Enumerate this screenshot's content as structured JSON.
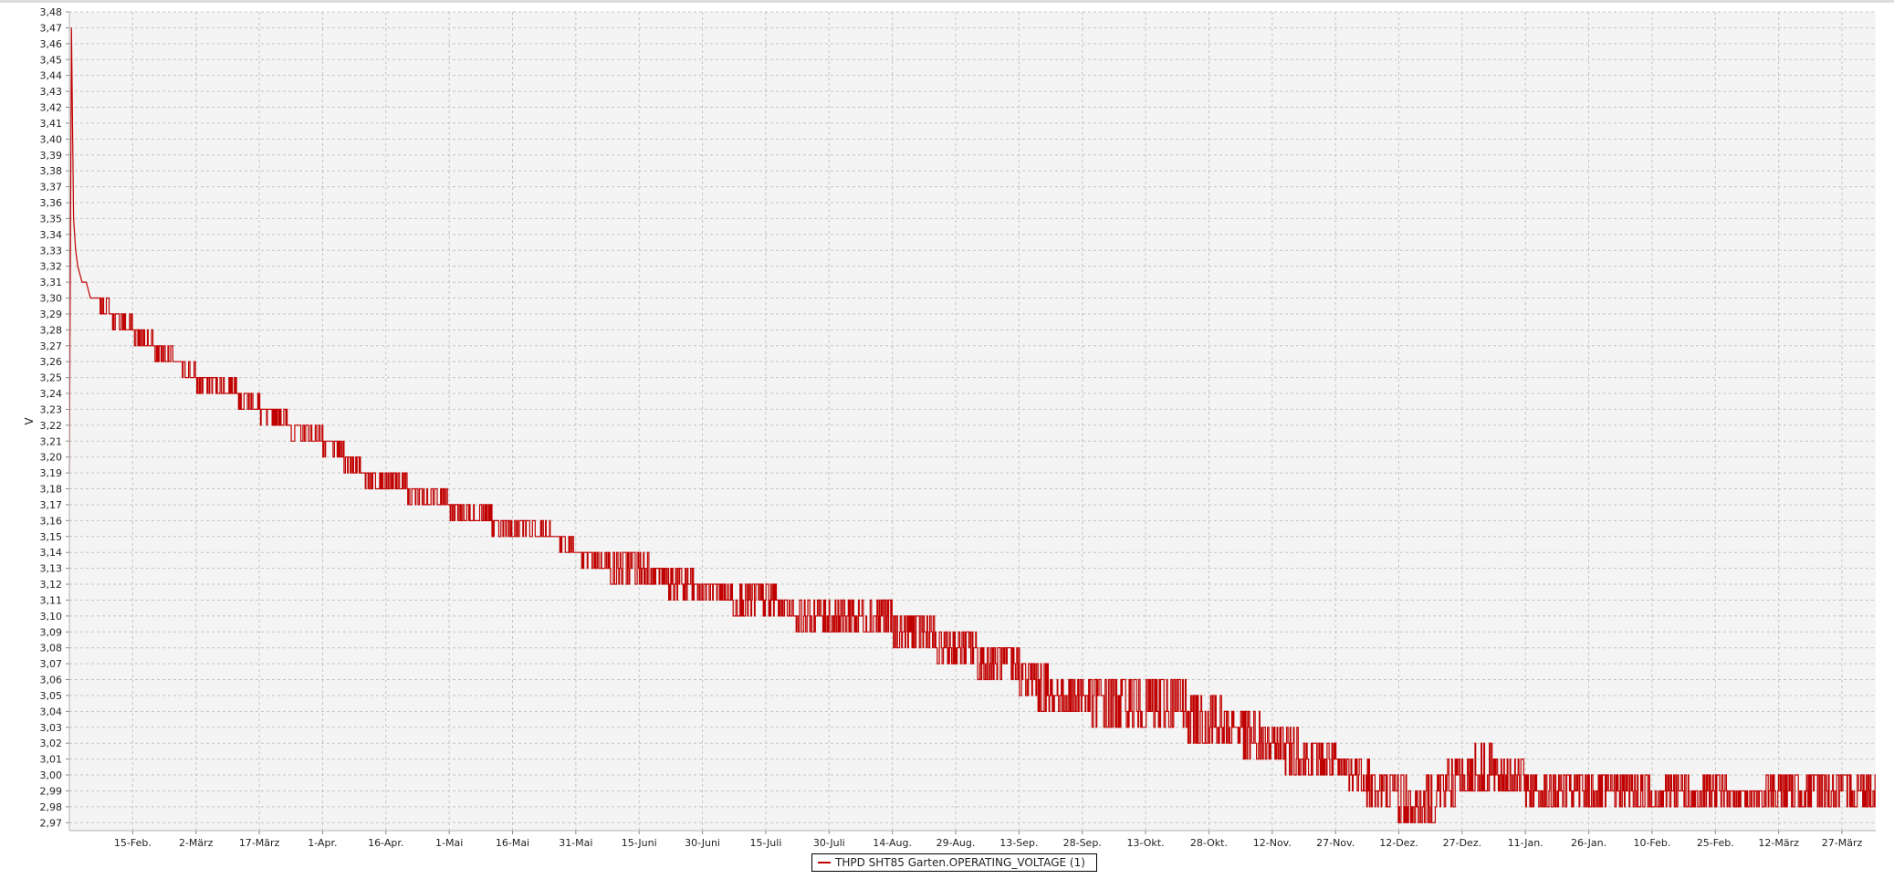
{
  "chart_data": {
    "type": "line",
    "title": "",
    "xlabel": "",
    "ylabel": "V",
    "ylim": [
      2.965,
      3.48
    ],
    "grid": true,
    "legend_position": "bottom-center",
    "y_ticks": [
      "3,48",
      "3,47",
      "3,46",
      "3,45",
      "3,44",
      "3,43",
      "3,42",
      "3,41",
      "3,40",
      "3,39",
      "3,38",
      "3,37",
      "3,36",
      "3,35",
      "3,34",
      "3,33",
      "3,32",
      "3,31",
      "3,30",
      "3,29",
      "3,28",
      "3,27",
      "3,26",
      "3,25",
      "3,24",
      "3,23",
      "3,22",
      "3,21",
      "3,20",
      "3,19",
      "3,18",
      "3,17",
      "3,16",
      "3,15",
      "3,14",
      "3,13",
      "3,12",
      "3,11",
      "3,10",
      "3,09",
      "3,08",
      "3,07",
      "3,06",
      "3,05",
      "3,04",
      "3,03",
      "3,02",
      "3,01",
      "3,00",
      "2,99",
      "2,98",
      "2,97"
    ],
    "x_ticks": [
      "15-Feb.",
      "2-März",
      "17-März",
      "1-Apr.",
      "16-Apr.",
      "1-Mai",
      "16-Mai",
      "31-Mai",
      "15-Juni",
      "30-Juni",
      "15-Juli",
      "30-Juli",
      "14-Aug.",
      "29-Aug.",
      "13-Sep.",
      "28-Sep.",
      "13-Okt.",
      "28-Okt.",
      "12-Nov.",
      "27-Nov.",
      "12-Dez.",
      "27-Dez.",
      "11-Jan.",
      "26-Jan.",
      "10-Feb.",
      "25-Feb.",
      "12-März",
      "27-März"
    ],
    "x_tick_days": [
      15,
      30,
      45,
      60,
      75,
      90,
      105,
      120,
      135,
      150,
      165,
      180,
      195,
      210,
      225,
      240,
      255,
      270,
      285,
      300,
      315,
      330,
      345,
      360,
      375,
      390,
      405,
      420
    ],
    "x_range_days": [
      0,
      428
    ],
    "series": [
      {
        "name": "THPD SHT85 Garten.OPERATING_VOLTAGE (1)",
        "color": "#c00000",
        "x": [
          0,
          0.5,
          1,
          1.5,
          2,
          3,
          4,
          5,
          6,
          8,
          10,
          15,
          20,
          25,
          30,
          35,
          40,
          45,
          50,
          55,
          60,
          65,
          70,
          75,
          80,
          85,
          90,
          95,
          100,
          105,
          110,
          115,
          120,
          125,
          130,
          135,
          140,
          145,
          150,
          155,
          160,
          165,
          170,
          175,
          180,
          185,
          190,
          195,
          200,
          205,
          210,
          215,
          220,
          225,
          230,
          235,
          240,
          245,
          250,
          255,
          260,
          265,
          270,
          275,
          280,
          285,
          290,
          295,
          300,
          305,
          310,
          315,
          320,
          325,
          330,
          335,
          340,
          345,
          350,
          355,
          360,
          365,
          370,
          375,
          380,
          385,
          390,
          395,
          400,
          405,
          410,
          415,
          420,
          425,
          428
        ],
        "y": [
          3.19,
          3.47,
          3.35,
          3.33,
          3.32,
          3.31,
          3.31,
          3.3,
          3.3,
          3.29,
          3.29,
          3.28,
          3.27,
          3.26,
          3.25,
          3.245,
          3.24,
          3.23,
          3.225,
          3.215,
          3.21,
          3.2,
          3.19,
          3.185,
          3.18,
          3.175,
          3.17,
          3.165,
          3.16,
          3.155,
          3.155,
          3.15,
          3.14,
          3.135,
          3.13,
          3.13,
          3.125,
          3.12,
          3.115,
          3.115,
          3.11,
          3.11,
          3.105,
          3.1,
          3.1,
          3.1,
          3.095,
          3.095,
          3.09,
          3.085,
          3.08,
          3.075,
          3.07,
          3.065,
          3.055,
          3.05,
          3.05,
          3.045,
          3.045,
          3.04,
          3.04,
          3.04,
          3.035,
          3.03,
          3.025,
          3.02,
          3.015,
          3.01,
          3.005,
          3.0,
          2.99,
          2.985,
          2.98,
          2.99,
          3.0,
          3.005,
          3.0,
          2.995,
          2.99,
          2.985,
          2.99,
          2.99,
          2.99,
          2.99,
          2.99,
          2.985,
          2.99,
          2.985,
          2.985,
          2.99,
          2.99,
          2.99,
          2.99,
          2.99,
          2.99
        ],
        "amp": [
          0,
          0,
          0,
          0,
          0,
          0,
          0,
          0,
          0,
          0.005,
          0.005,
          0.005,
          0.005,
          0.005,
          0.005,
          0.005,
          0.005,
          0.005,
          0.005,
          0.005,
          0.005,
          0.005,
          0.005,
          0.005,
          0.005,
          0.005,
          0.005,
          0.005,
          0.005,
          0.005,
          0.005,
          0.005,
          0.005,
          0.005,
          0.008,
          0.008,
          0.008,
          0.008,
          0.008,
          0.008,
          0.008,
          0.008,
          0.008,
          0.008,
          0.01,
          0.01,
          0.01,
          0.01,
          0.01,
          0.01,
          0.01,
          0.01,
          0.01,
          0.01,
          0.012,
          0.012,
          0.012,
          0.015,
          0.015,
          0.015,
          0.015,
          0.015,
          0.015,
          0.012,
          0.012,
          0.012,
          0.012,
          0.01,
          0.01,
          0.01,
          0.012,
          0.012,
          0.012,
          0.012,
          0.012,
          0.012,
          0.012,
          0.01,
          0.01,
          0.01,
          0.01,
          0.01,
          0.01,
          0.01,
          0.01,
          0.008,
          0.008,
          0.008,
          0.008,
          0.008,
          0.008,
          0.008,
          0.008,
          0.008,
          0.008
        ]
      }
    ]
  }
}
